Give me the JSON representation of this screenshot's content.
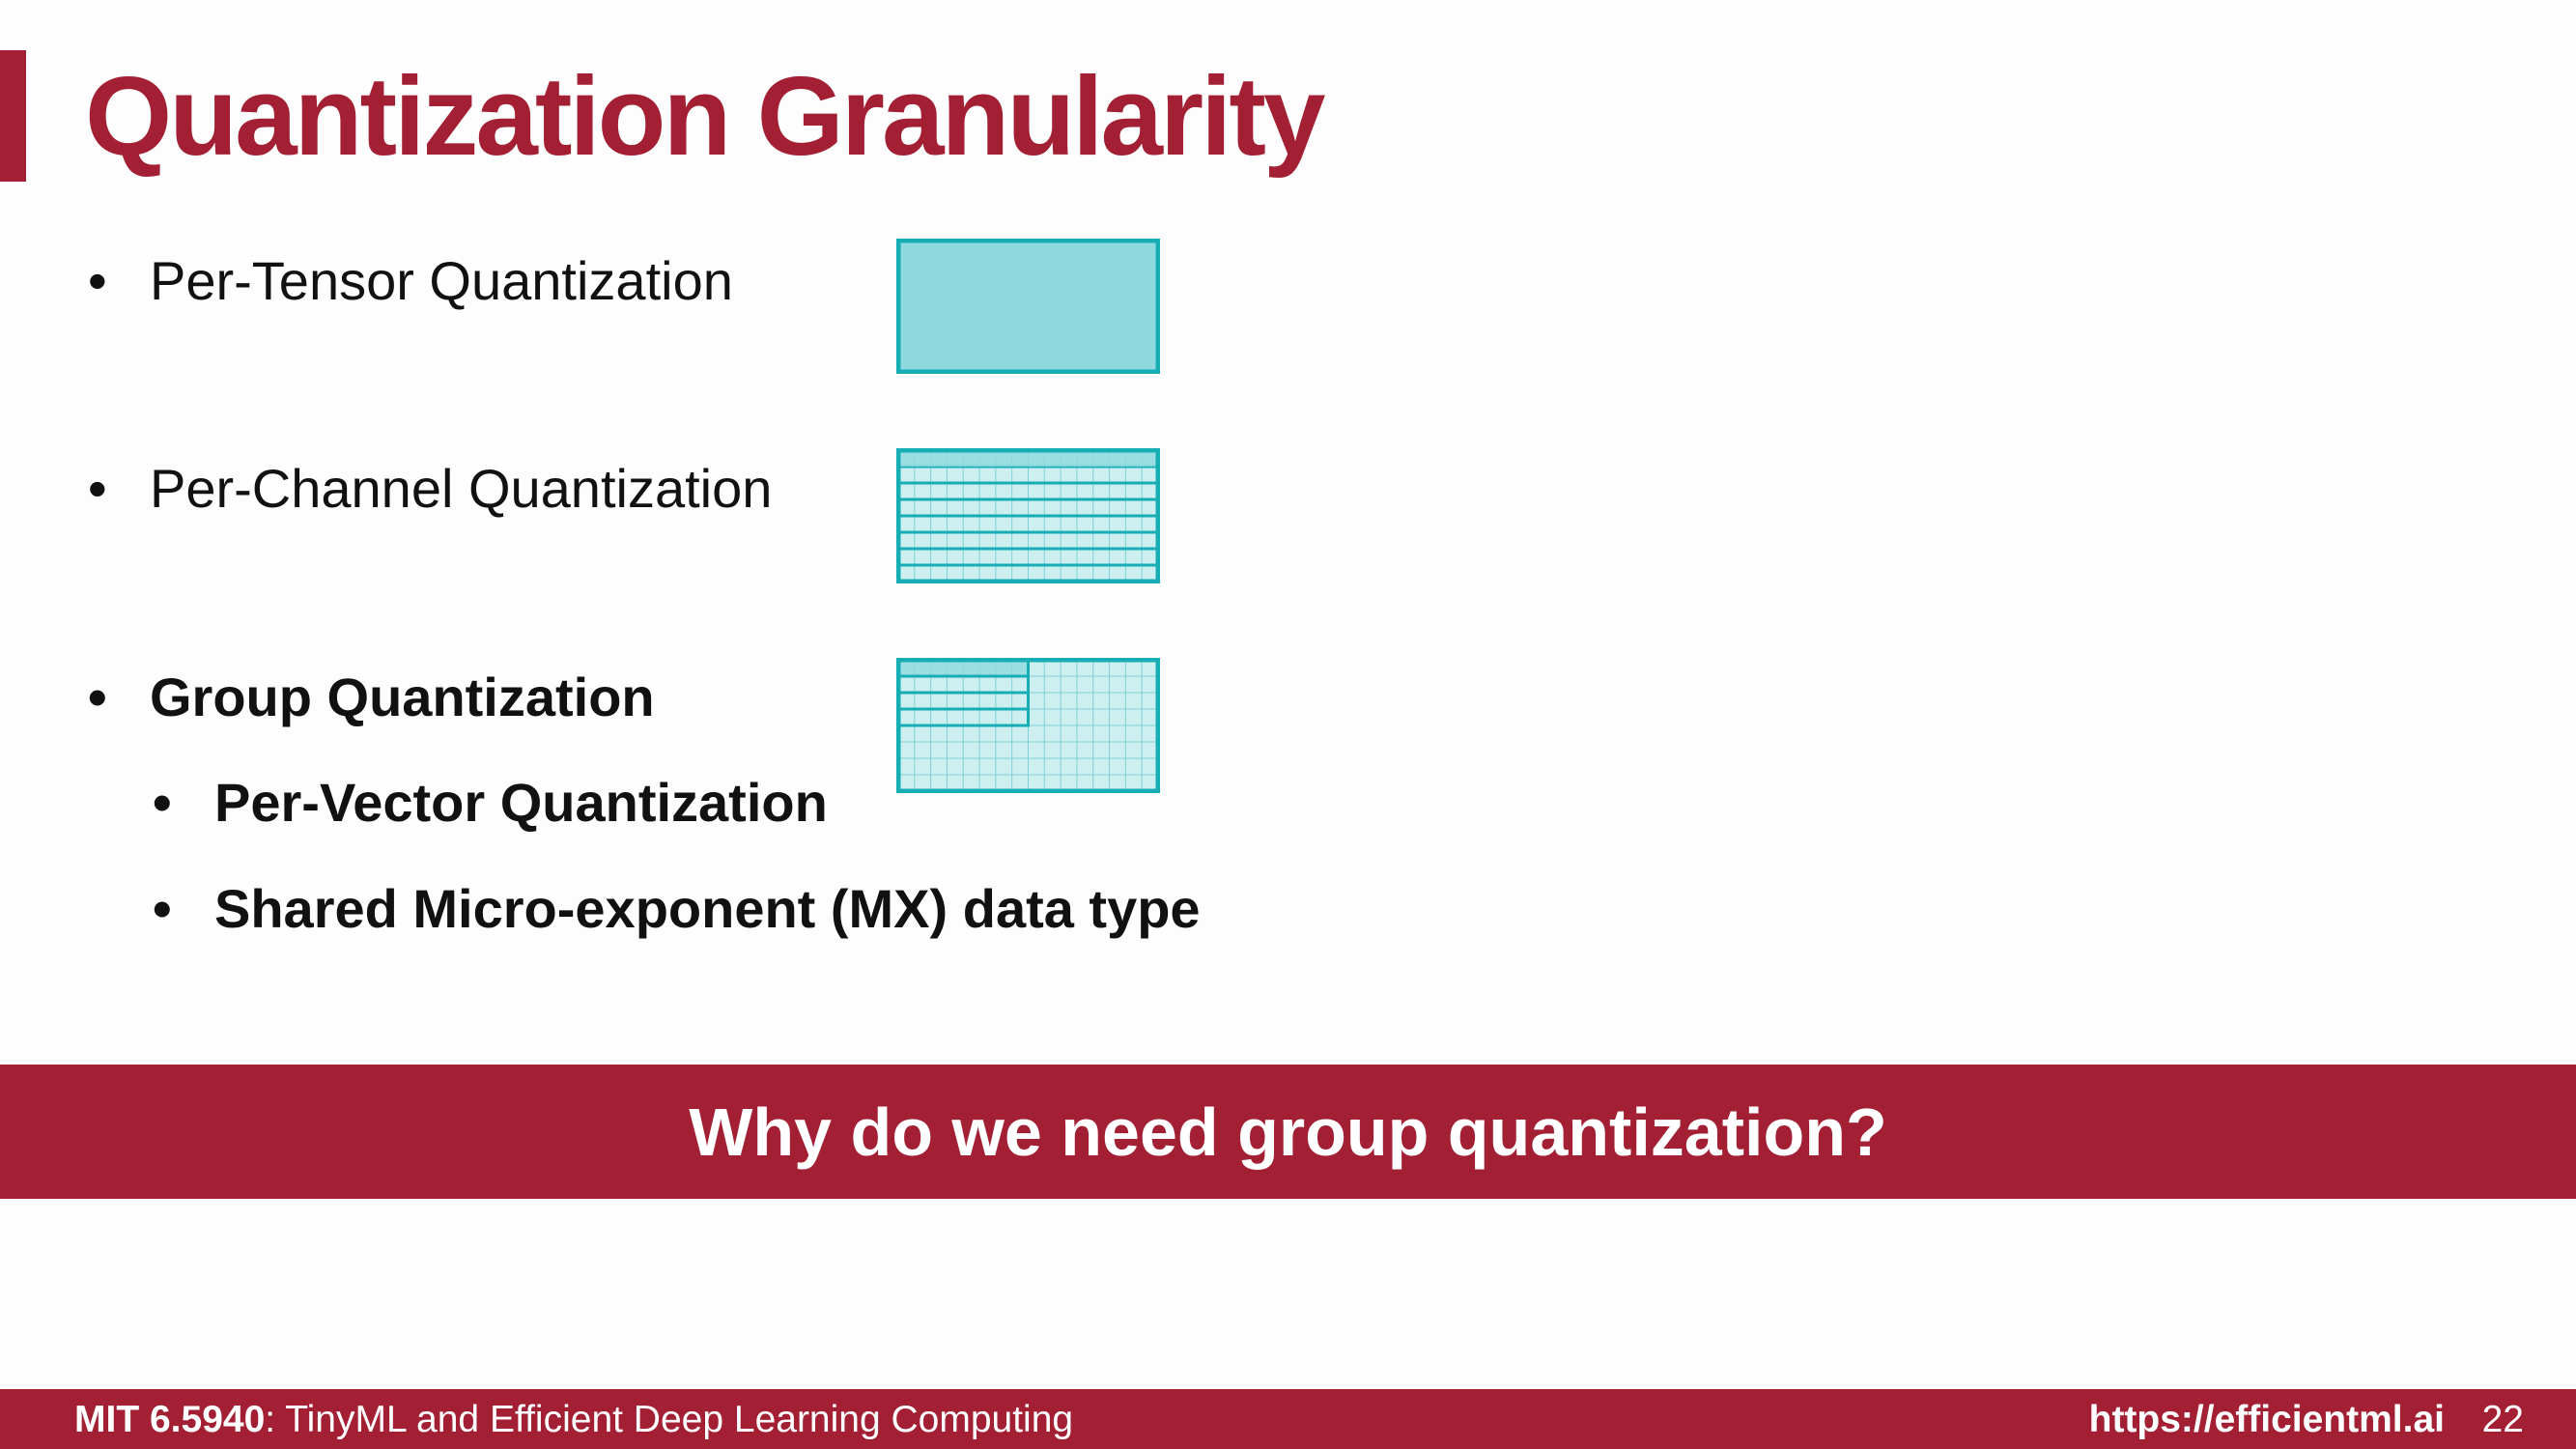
{
  "slide": {
    "title": "Quantization Granularity",
    "bullets": [
      {
        "text": "Per-Tensor Quantization"
      },
      {
        "text": "Per-Channel Quantization"
      },
      {
        "text": "Group Quantization",
        "sub": [
          "Per-Vector Quantization",
          "Shared Micro-exponent (MX) data type"
        ]
      }
    ],
    "bullet_symbol": "•",
    "banner": "Why do we need group quantization?"
  },
  "footer": {
    "course": "MIT 6.5940",
    "course_title": ": TinyML and Efficient Deep Learning Computing",
    "url": "https://efficientml.ai",
    "page_number": "22"
  },
  "colors": {
    "accent": "#a31f34",
    "teal_border": "#17adb4",
    "teal_fill": "#8ed9de",
    "teal_light": "#cdeff0",
    "text": "#111111"
  },
  "icons": [
    "per-tensor-matrix-icon",
    "per-channel-matrix-icon",
    "group-matrix-icon"
  ]
}
